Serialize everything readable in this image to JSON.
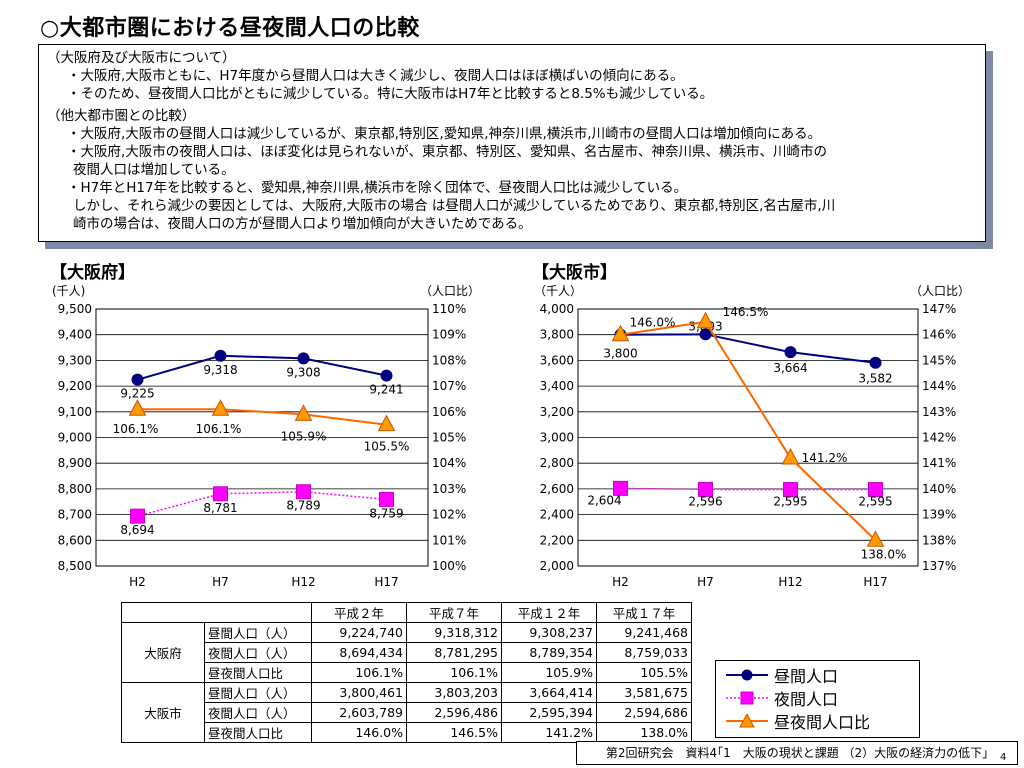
{
  "title": "○大都市圏における昼夜間人口の比較",
  "notes": {
    "sec1_head": "（大阪府及び大阪市について）",
    "sec1_b1": "・大阪府,大阪市ともに、H7年度から昼間人口は大きく減少し、夜間人口はほぼ横ばいの傾向にある。",
    "sec1_b2": "・そのため、昼夜間人口比がともに減少している。特に大阪市はH7年と比較すると8.5%も減少している。",
    "sec2_head": "（他大都市圏との比較）",
    "sec2_b1": "・大阪府,大阪市の昼間人口は減少しているが、東京都,特別区,愛知県,神奈川県,横浜市,川崎市の昼間人口は増加傾向にある。",
    "sec2_b2": "・大阪府,大阪市の夜間人口は、ほぼ変化は見られないが、東京都、特別区、愛知県、名古屋市、神奈川県、横浜市、川崎市の",
    "sec2_b2c": "夜間人口は増加している。",
    "sec2_b3": "・H7年とH17年を比較すると、愛知県,神奈川県,横浜市を除く団体で、昼夜間人口比は減少している。",
    "sec2_b4": "しかし、それら減少の要因としては、大阪府,大阪市の場合 は昼間人口が減少しているためであり、東京都,特別区,名古屋市,川",
    "sec2_b4c": "崎市の場合は、夜間人口の方が昼間人口より増加傾向が大きいためである。"
  },
  "chart_data": [
    {
      "type": "line",
      "label": "【大阪府】",
      "x": [
        "H2",
        "H7",
        "H12",
        "H17"
      ],
      "left_unit": "(千人)",
      "right_unit": "（人口比）",
      "left_ticks": [
        "9,500",
        "9,400",
        "9,300",
        "9,200",
        "9,100",
        "9,000",
        "8,900",
        "8,800",
        "8,700",
        "8,600",
        "8,500"
      ],
      "right_ticks": [
        "110%",
        "109%",
        "108%",
        "107%",
        "106%",
        "105%",
        "104%",
        "103%",
        "102%",
        "101%",
        "100%"
      ],
      "ylim_left": [
        8500,
        9500
      ],
      "ylim_right": [
        100,
        110
      ],
      "series": [
        {
          "name": "昼間人口",
          "axis": "left",
          "color": "#000080",
          "marker": "circle",
          "values": [
            9225,
            9318,
            9308,
            9241
          ],
          "labels": [
            "9,225",
            "9,318",
            "9,308",
            "9,241"
          ]
        },
        {
          "name": "夜間人口",
          "axis": "left",
          "color": "#ff00ff",
          "marker": "square",
          "values": [
            8694,
            8781,
            8789,
            8759
          ],
          "labels": [
            "8,694",
            "8,781",
            "8,789",
            "8,759"
          ]
        },
        {
          "name": "昼夜間人口比",
          "axis": "right",
          "color": "#ff6600",
          "marker": "triangle",
          "values": [
            106.1,
            106.1,
            105.9,
            105.5
          ],
          "labels": [
            "106.1%",
            "106.1%",
            "105.9%",
            "105.5%"
          ]
        }
      ]
    },
    {
      "type": "line",
      "label": "【大阪市】",
      "x": [
        "H2",
        "H7",
        "H12",
        "H17"
      ],
      "left_unit": "（千人）",
      "right_unit": "（人口比）",
      "left_ticks": [
        "4,000",
        "3,800",
        "3,600",
        "3,400",
        "3,200",
        "3,000",
        "2,800",
        "2,600",
        "2,400",
        "2,200",
        "2,000"
      ],
      "right_ticks": [
        "147%",
        "146%",
        "145%",
        "144%",
        "143%",
        "142%",
        "141%",
        "140%",
        "139%",
        "138%",
        "137%"
      ],
      "ylim_left": [
        2000,
        4000
      ],
      "ylim_right": [
        137,
        147
      ],
      "series": [
        {
          "name": "昼間人口",
          "axis": "left",
          "color": "#000080",
          "marker": "circle",
          "values": [
            3800,
            3803,
            3664,
            3582
          ],
          "labels": [
            "3,800",
            "3,803",
            "3,664",
            "3,582"
          ]
        },
        {
          "name": "夜間人口",
          "axis": "left",
          "color": "#ff00ff",
          "marker": "square",
          "values": [
            2604,
            2596,
            2595,
            2595
          ],
          "labels": [
            "2,604",
            "2,596",
            "2,595",
            "2,595"
          ]
        },
        {
          "name": "昼夜間人口比",
          "axis": "right",
          "color": "#ff6600",
          "marker": "triangle",
          "values": [
            146.0,
            146.5,
            141.2,
            138.0
          ],
          "labels": [
            "146.0%",
            "146.5%",
            "141.2%",
            "138.0%"
          ]
        }
      ]
    }
  ],
  "table": {
    "headers": [
      "平成２年",
      "平成７年",
      "平成１２年",
      "平成１７年"
    ],
    "groups": [
      {
        "name": "大阪府",
        "rows": [
          {
            "label": "昼間人口（人）",
            "values": [
              "9,224,740",
              "9,318,312",
              "9,308,237",
              "9,241,468"
            ]
          },
          {
            "label": "夜間人口（人）",
            "values": [
              "8,694,434",
              "8,781,295",
              "8,789,354",
              "8,759,033"
            ]
          },
          {
            "label": "昼夜間人口比",
            "values": [
              "106.1%",
              "106.1%",
              "105.9%",
              "105.5%"
            ]
          }
        ]
      },
      {
        "name": "大阪市",
        "rows": [
          {
            "label": "昼間人口（人）",
            "values": [
              "3,800,461",
              "3,803,203",
              "3,664,414",
              "3,581,675"
            ]
          },
          {
            "label": "夜間人口（人）",
            "values": [
              "2,603,789",
              "2,596,486",
              "2,595,394",
              "2,594,686"
            ]
          },
          {
            "label": "昼夜間人口比",
            "values": [
              "146.0%",
              "146.5%",
              "141.2%",
              "138.0%"
            ]
          }
        ]
      }
    ]
  },
  "legend": {
    "items": [
      {
        "label": "昼間人口",
        "color": "#000080",
        "marker": "circle-icon"
      },
      {
        "label": "夜間人口",
        "color": "#ff00ff",
        "marker": "square-icon"
      },
      {
        "label": "昼夜間人口比",
        "color": "#ff6600",
        "marker": "triangle-icon"
      }
    ]
  },
  "footer": "第2回研究会　資料4｢1　大阪の現状と課題 （2）大阪の経済力の低下｣",
  "slide_number": "4"
}
